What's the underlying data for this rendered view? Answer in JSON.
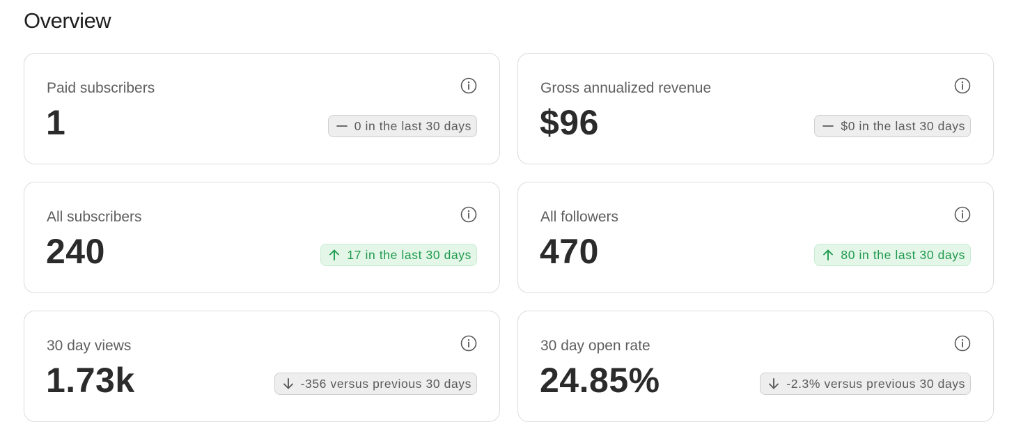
{
  "page": {
    "title": "Overview"
  },
  "cards": [
    {
      "label": "Paid subscribers",
      "value": "1",
      "trend": "neutral",
      "trend_icon": "dash-icon",
      "change": "0 in the last 30 days"
    },
    {
      "label": "Gross annualized revenue",
      "value": "$96",
      "trend": "neutral",
      "trend_icon": "dash-icon",
      "change": "$0 in the last 30 days"
    },
    {
      "label": "All subscribers",
      "value": "240",
      "trend": "up",
      "trend_icon": "arrow-up-icon",
      "change": "17 in the last 30 days"
    },
    {
      "label": "All followers",
      "value": "470",
      "trend": "up",
      "trend_icon": "arrow-up-icon",
      "change": "80 in the last 30 days"
    },
    {
      "label": "30 day views",
      "value": "1.73k",
      "trend": "down",
      "trend_icon": "arrow-down-icon",
      "change": "-356 versus previous 30 days"
    },
    {
      "label": "30 day open rate",
      "value": "24.85%",
      "trend": "down",
      "trend_icon": "arrow-down-icon",
      "change": "-2.3% versus previous 30 days"
    }
  ],
  "colors": {
    "up_text": "#1f9a4d",
    "up_background": "#e3f6e8",
    "neutral_text": "#5a5a5a",
    "neutral_background": "#eeeeee",
    "value_text": "#2b2b2b",
    "label_text": "#5e5e5e"
  }
}
